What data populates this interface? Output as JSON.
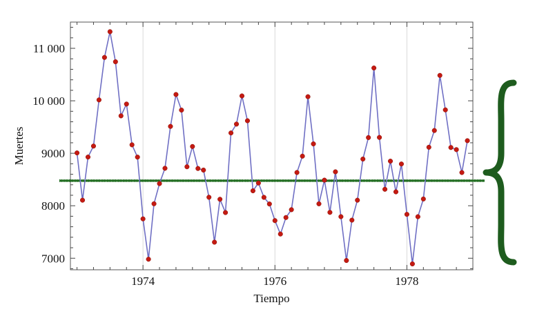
{
  "chart_data": {
    "type": "line",
    "title": "",
    "xlabel": "Tiempo",
    "ylabel": "Muertes",
    "xlim": [
      1972.9,
      1979.0
    ],
    "ylim": [
      6780,
      11500
    ],
    "grid": "vertical-lines-at-x-ticks",
    "x_ticks": [
      1974,
      1976,
      1978
    ],
    "x_tick_labels": [
      "1974",
      "1976",
      "1978"
    ],
    "y_ticks": [
      7000,
      8000,
      9000,
      10000,
      11000
    ],
    "y_tick_labels": [
      "7000",
      "8000",
      "9000",
      "10 000",
      "11 000"
    ],
    "x_start": 1973.0,
    "x_step": 0.08333333,
    "series": [
      {
        "values": [
          9007,
          8106,
          8928,
          9137,
          10017,
          10826,
          11317,
          10744,
          9713,
          9938,
          9161,
          8927,
          7750,
          6981,
          8038,
          8422,
          8714,
          9512,
          10120,
          9823,
          8743,
          9129,
          8710,
          8680,
          8162,
          7306,
          8124,
          7870,
          9387,
          9556,
          10093,
          9620,
          8285,
          8433,
          8160,
          8034,
          7717,
          7461,
          7776,
          7925,
          8634,
          8945,
          10078,
          9179,
          8037,
          8488,
          7874,
          8647,
          7792,
          6957,
          7726,
          8106,
          8890,
          9299,
          10625,
          9302,
          8314,
          8850,
          8265,
          8796,
          7836,
          6892,
          7791,
          8129,
          9115,
          9434,
          10484,
          9827,
          9110,
          9070,
          8633,
          9240
        ],
        "line_color": "#6f6fc4",
        "marker_color": "#c41a12"
      }
    ],
    "reference_line": {
      "y": 8478,
      "color": "#1e6b1e"
    },
    "brace": {
      "color": "#1e5c1e"
    }
  }
}
